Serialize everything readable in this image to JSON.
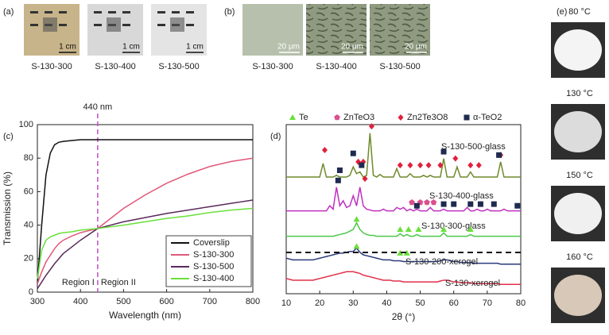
{
  "panel_a": {
    "label": "(a)",
    "images": [
      {
        "caption": "S-130-300",
        "scale": "1 cm"
      },
      {
        "caption": "S-130-400",
        "scale": "1 cm"
      },
      {
        "caption": "S-130-500",
        "scale": "1 cm"
      }
    ]
  },
  "panel_b": {
    "label": "(b)",
    "images": [
      {
        "caption": "S-130-300",
        "scale": "20 μm"
      },
      {
        "caption": "S-130-400",
        "scale": "20 μm"
      },
      {
        "caption": "S-130-500",
        "scale": "20 μm"
      }
    ]
  },
  "panel_e": {
    "label": "(e)",
    "images": [
      {
        "caption": "80 °C"
      },
      {
        "caption": "130 °C"
      },
      {
        "caption": "150 °C"
      },
      {
        "caption": "160 °C"
      }
    ]
  },
  "chart_data": [
    {
      "type": "line",
      "label": "(c)",
      "annotation": "440 nm",
      "marker_x": 440,
      "regions": [
        "Region I",
        "Region II"
      ],
      "x_label": "Wavelength (nm)",
      "y_label": "Transmission (%)",
      "x": [
        300,
        310,
        320,
        330,
        340,
        350,
        360,
        380,
        400,
        440,
        500,
        550,
        600,
        650,
        700,
        750,
        800
      ],
      "series": [
        {
          "name": "Coverslip",
          "color": "#111111",
          "values": [
            5,
            40,
            70,
            83,
            88,
            89.5,
            90,
            90.5,
            91,
            91,
            91,
            91,
            91,
            91,
            91,
            91,
            91
          ]
        },
        {
          "name": "S-130-300",
          "color": "#e0587a",
          "values": [
            5,
            12,
            18,
            22,
            26,
            29,
            31,
            33.5,
            35.5,
            38,
            50,
            58,
            65,
            70.5,
            75,
            78,
            80
          ]
        },
        {
          "name": "S-130-500",
          "color": "#5a2a5c",
          "values": [
            2,
            6,
            10,
            13.5,
            17,
            20,
            23,
            27,
            31,
            38,
            42,
            44.5,
            47,
            49,
            51,
            53,
            55
          ]
        },
        {
          "name": "S-130-400",
          "color": "#6ae03a",
          "values": [
            8,
            25,
            31,
            33,
            34,
            35,
            35.5,
            36,
            37,
            38,
            40,
            42,
            44,
            45.5,
            47.5,
            49,
            50
          ]
        }
      ],
      "xlim": [
        300,
        800
      ],
      "xticks": [
        300,
        400,
        500,
        600,
        700,
        800
      ],
      "ylim": [
        0,
        100
      ],
      "yticks": [
        0,
        20,
        40,
        60,
        80,
        100
      ],
      "legend": "lower right"
    },
    {
      "type": "line",
      "label": "(d)",
      "x_label": "2θ (°)",
      "x": [
        10,
        11,
        12,
        13,
        14,
        15,
        16,
        17,
        18,
        19,
        20,
        21,
        22,
        23,
        24,
        25,
        26,
        27,
        28,
        29,
        30,
        31,
        32,
        33,
        34,
        35,
        36,
        37,
        38,
        39,
        40,
        41,
        42,
        43,
        44,
        45,
        46,
        47,
        48,
        49,
        50,
        51,
        52,
        53,
        54,
        55,
        56,
        57,
        58,
        59,
        60,
        61,
        62,
        63,
        64,
        65,
        66,
        67,
        68,
        69,
        70,
        71,
        72,
        73,
        74,
        75,
        76,
        77,
        78,
        79,
        80
      ],
      "series": [
        {
          "name": "S-130-xerogel",
          "color": "#e0304a",
          "values": [
            9,
            8.5,
            8,
            8,
            8,
            8,
            8,
            8,
            8,
            8.5,
            9,
            9.5,
            10,
            10.5,
            11,
            11.5,
            12,
            12.5,
            13,
            13,
            13,
            12.5,
            12,
            11,
            10.5,
            10,
            9.5,
            9,
            8.5,
            8,
            8,
            8,
            7.5,
            7.5,
            7.5,
            7,
            7,
            7,
            7,
            7,
            7,
            7,
            7,
            7,
            7,
            7,
            7.5,
            8,
            8,
            7.5,
            7,
            7,
            6.5,
            6.5,
            6.5,
            6.5,
            6,
            6,
            6,
            6,
            6,
            6,
            6,
            6,
            5.5,
            5.5,
            5.5,
            5.5,
            5.5,
            5.5,
            5.5
          ]
        },
        {
          "name": "S-130-200-xerogel",
          "color": "#2a3a7a",
          "values": [
            21,
            20.5,
            20,
            20,
            20,
            20,
            20,
            20,
            20,
            20.5,
            21,
            21.5,
            22,
            22.5,
            23,
            23.5,
            24,
            24,
            24.5,
            25,
            25,
            27,
            24.5,
            23,
            22.5,
            22,
            21.5,
            21,
            20.5,
            20,
            20,
            20,
            19.5,
            19.5,
            19.5,
            19,
            19,
            19,
            19,
            19,
            19,
            19,
            19,
            19,
            19,
            19,
            19.5,
            20,
            20,
            19.5,
            19,
            19,
            18.5,
            18.5,
            18.5,
            18.5,
            18,
            18,
            18,
            18,
            18,
            18,
            18,
            18,
            17.5,
            17.5,
            17.5,
            17.5,
            17.5,
            17.5,
            17.5
          ]
        },
        {
          "name": "S-130-300-glass",
          "color": "#4cc84a",
          "values": [
            34,
            34,
            34,
            34,
            34,
            34,
            34,
            34,
            34,
            34,
            34,
            34,
            34,
            34,
            34,
            34.5,
            35,
            35.5,
            36,
            37,
            38,
            42,
            38,
            36,
            35,
            34.5,
            34.5,
            34,
            34,
            34,
            34,
            34,
            34,
            34,
            35.5,
            34,
            35,
            34,
            34,
            35,
            34,
            34,
            34,
            34,
            34,
            34,
            34,
            36,
            34,
            34,
            34,
            34,
            34,
            34,
            34,
            35,
            34,
            34,
            34,
            34,
            34,
            34,
            34,
            34,
            34,
            34,
            34,
            34,
            34,
            34,
            34
          ]
        },
        {
          "name": "S-130-400-glass",
          "color": "#c030c0",
          "values": [
            49,
            49,
            49,
            49,
            49,
            49,
            49,
            49,
            49,
            49,
            49,
            49,
            49,
            52,
            50,
            63,
            52,
            55,
            51,
            52,
            58,
            52,
            63,
            52,
            50,
            49.5,
            49,
            49,
            49,
            50,
            49,
            49,
            49,
            51,
            50,
            51,
            49,
            50,
            49,
            50,
            49,
            49,
            49,
            51,
            49,
            49,
            49,
            50,
            49,
            49,
            49,
            49,
            49,
            49,
            51,
            49,
            49,
            50,
            49,
            49,
            50,
            49,
            49,
            49,
            49,
            50,
            49,
            49,
            49,
            49,
            49
          ]
        },
        {
          "name": "S-130-500-glass",
          "color": "#6e8a2a",
          "values": [
            69,
            69,
            69,
            69,
            69,
            69,
            69,
            69,
            69,
            69,
            69,
            77,
            69,
            69,
            69,
            70,
            69,
            69,
            69,
            70,
            75,
            71,
            72,
            69,
            70,
            95,
            70,
            69,
            70.5,
            69,
            69,
            69,
            69,
            74,
            69,
            69,
            69,
            71,
            69,
            69,
            69,
            70,
            69,
            70,
            69,
            69,
            69,
            80,
            69,
            69,
            69,
            75,
            69,
            69,
            69,
            72,
            69,
            69,
            69,
            69,
            69,
            69,
            69,
            69,
            78,
            69,
            69,
            69,
            69,
            69,
            69
          ]
        }
      ],
      "markers": [
        {
          "name": "Te",
          "color": "#6ae03a",
          "shape": "triangle",
          "x": [
            31,
            44,
            46.5,
            49.5,
            57,
            65,
            31,
            44,
            46
          ],
          "y": [
            44,
            38,
            38,
            38,
            38,
            38,
            28,
            24,
            24
          ]
        },
        {
          "name": "ZnTeO3",
          "color": "#d8508e",
          "shape": "pentagon",
          "x": [
            47.5,
            50,
            52,
            54
          ],
          "y": [
            54,
            54,
            54,
            54
          ]
        },
        {
          "name": "Zn2Te3O8",
          "color": "#e0203c",
          "shape": "diamond",
          "x": [
            21.5,
            35.5,
            31.5,
            33,
            44,
            47,
            50,
            52.5,
            56,
            60.5,
            65,
            67.5,
            74,
            33.5
          ],
          "y": [
            85,
            99,
            78,
            78,
            76,
            76,
            76,
            76,
            76,
            80,
            76,
            76,
            82,
            68
          ]
        },
        {
          "name": "α-TeO2",
          "color": "#1f2a50",
          "shape": "square",
          "x": [
            25.5,
            49,
            57,
            60,
            65,
            68,
            72,
            79,
            26,
            30,
            32.5,
            57,
            73.5
          ],
          "y": [
            67,
            52,
            53,
            53,
            53,
            53,
            53,
            52,
            73,
            83,
            76,
            84,
            82
          ]
        }
      ],
      "xlim": [
        10,
        80
      ],
      "xticks": [
        10,
        20,
        30,
        40,
        50,
        60,
        70,
        80
      ],
      "ylim": [
        0,
        100
      ]
    }
  ]
}
